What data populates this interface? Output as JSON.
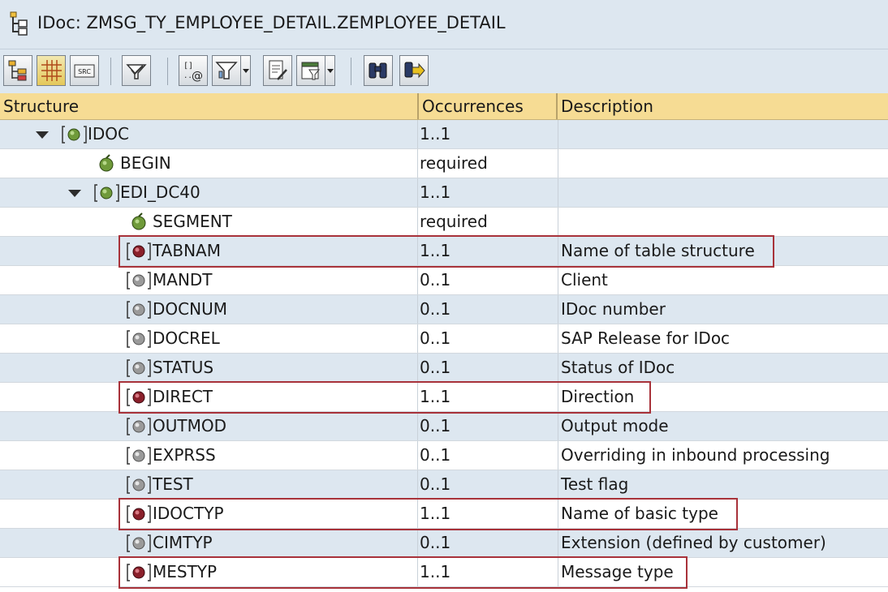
{
  "window": {
    "title": "IDoc: ZMSG_TY_EMPLOYEE_DETAIL.ZEMPLOYEE_DETAIL",
    "icon": "idoc-hierarchy-icon"
  },
  "toolbar": {
    "buttons": [
      {
        "name": "tree-view-icon"
      },
      {
        "name": "grid-view-icon"
      },
      {
        "name": "source-src-icon"
      },
      {
        "name": "select-filter-icon"
      },
      {
        "name": "field-attributes-icon"
      },
      {
        "name": "filter-icon"
      },
      {
        "name": "print-preview-icon"
      },
      {
        "name": "export-icon"
      },
      {
        "name": "find-binoculars-icon"
      },
      {
        "name": "find-next-icon"
      }
    ]
  },
  "table": {
    "columns": [
      "Structure",
      "Occurrences",
      "Description"
    ],
    "rows": [
      {
        "label": "IDOC",
        "occ": "1..1",
        "desc": "",
        "icon": "segment-group-icon",
        "expand": true
      },
      {
        "label": "BEGIN",
        "occ": "required",
        "desc": "",
        "icon": "required-attribute-icon",
        "expand": false
      },
      {
        "label": "EDI_DC40",
        "occ": "1..1",
        "desc": "",
        "icon": "segment-group-icon",
        "expand": true
      },
      {
        "label": "SEGMENT",
        "occ": "required",
        "desc": "",
        "icon": "required-attribute-icon",
        "expand": false
      },
      {
        "label": "TABNAM",
        "occ": "1..1",
        "desc": "Name of table structure",
        "icon": "mandatory-field-icon",
        "expand": false
      },
      {
        "label": "MANDT",
        "occ": "0..1",
        "desc": "Client",
        "icon": "optional-field-icon",
        "expand": false
      },
      {
        "label": "DOCNUM",
        "occ": "0..1",
        "desc": "IDoc number",
        "icon": "optional-field-icon",
        "expand": false
      },
      {
        "label": "DOCREL",
        "occ": "0..1",
        "desc": "SAP Release for IDoc",
        "icon": "optional-field-icon",
        "expand": false
      },
      {
        "label": "STATUS",
        "occ": "0..1",
        "desc": "Status of IDoc",
        "icon": "optional-field-icon",
        "expand": false
      },
      {
        "label": "DIRECT",
        "occ": "1..1",
        "desc": "Direction",
        "icon": "mandatory-field-icon",
        "expand": false
      },
      {
        "label": "OUTMOD",
        "occ": "0..1",
        "desc": "Output mode",
        "icon": "optional-field-icon",
        "expand": false
      },
      {
        "label": "EXPRSS",
        "occ": "0..1",
        "desc": "Overriding in inbound processing",
        "icon": "optional-field-icon",
        "expand": false
      },
      {
        "label": "TEST",
        "occ": "0..1",
        "desc": "Test flag",
        "icon": "optional-field-icon",
        "expand": false
      },
      {
        "label": "IDOCTYP",
        "occ": "1..1",
        "desc": "Name of basic type",
        "icon": "mandatory-field-icon",
        "expand": false
      },
      {
        "label": "CIMTYP",
        "occ": "0..1",
        "desc": "Extension (defined by customer)",
        "icon": "optional-field-icon",
        "expand": false
      },
      {
        "label": "MESTYP",
        "occ": "1..1",
        "desc": "Message type",
        "icon": "mandatory-field-icon",
        "expand": false
      }
    ]
  },
  "colors": {
    "header_bg": "#f6dc94",
    "row_shade": "#dde7f0",
    "highlight_border": "#a8323a"
  }
}
